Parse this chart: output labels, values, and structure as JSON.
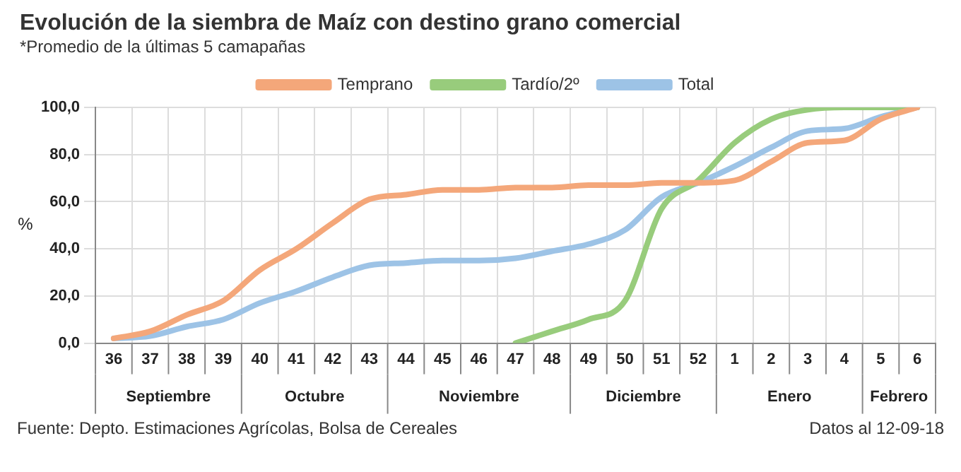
{
  "chart_data": {
    "type": "line",
    "title": "Evolución de la siembra de Maíz con destino grano comercial",
    "subtitle": "*Promedio de la últimas 5 camapañas",
    "ylabel": "%",
    "categories": [
      "36",
      "37",
      "38",
      "39",
      "40",
      "41",
      "42",
      "43",
      "44",
      "45",
      "46",
      "47",
      "48",
      "49",
      "50",
      "51",
      "52",
      "1",
      "2",
      "3",
      "4",
      "5",
      "6"
    ],
    "series": [
      {
        "name": "Temprano",
        "color": "#f4a77a",
        "values": [
          2,
          5,
          12,
          18,
          31,
          40,
          51,
          61,
          63,
          65,
          65,
          66,
          66,
          67,
          67,
          68,
          68,
          69,
          77,
          85,
          86,
          95,
          100
        ]
      },
      {
        "name": "Tardío/2º",
        "color": "#98cc7c",
        "values": [
          null,
          null,
          null,
          null,
          null,
          null,
          null,
          null,
          null,
          null,
          null,
          0,
          5,
          10,
          18,
          57,
          69,
          85,
          95,
          99,
          100,
          100,
          100
        ]
      },
      {
        "name": "Total",
        "color": "#9dc3e6",
        "values": [
          2,
          3,
          7,
          10,
          17,
          22,
          28,
          33,
          34,
          35,
          35,
          36,
          39,
          42,
          48,
          62,
          68,
          75,
          83,
          90,
          91,
          96,
          100
        ]
      }
    ],
    "ylim": [
      0,
      100
    ],
    "yticks": [
      {
        "value": 0,
        "label": "0,0"
      },
      {
        "value": 20,
        "label": "20,0"
      },
      {
        "value": 40,
        "label": "40,0"
      },
      {
        "value": 60,
        "label": "60,0"
      },
      {
        "value": 80,
        "label": "80,0"
      },
      {
        "value": 100,
        "label": "100,0"
      }
    ],
    "grid": true,
    "legend": "top",
    "marker": "none",
    "line_style": "solid",
    "annotations": [
      "Septiembre",
      "Octubre",
      "Noviembre",
      "Diciembre",
      "Enero",
      "Febrero",
      "Fuente: Depto. Estimaciones Agrícolas, Bolsa de Cereales",
      "Datos al 12-09-18"
    ]
  }
}
